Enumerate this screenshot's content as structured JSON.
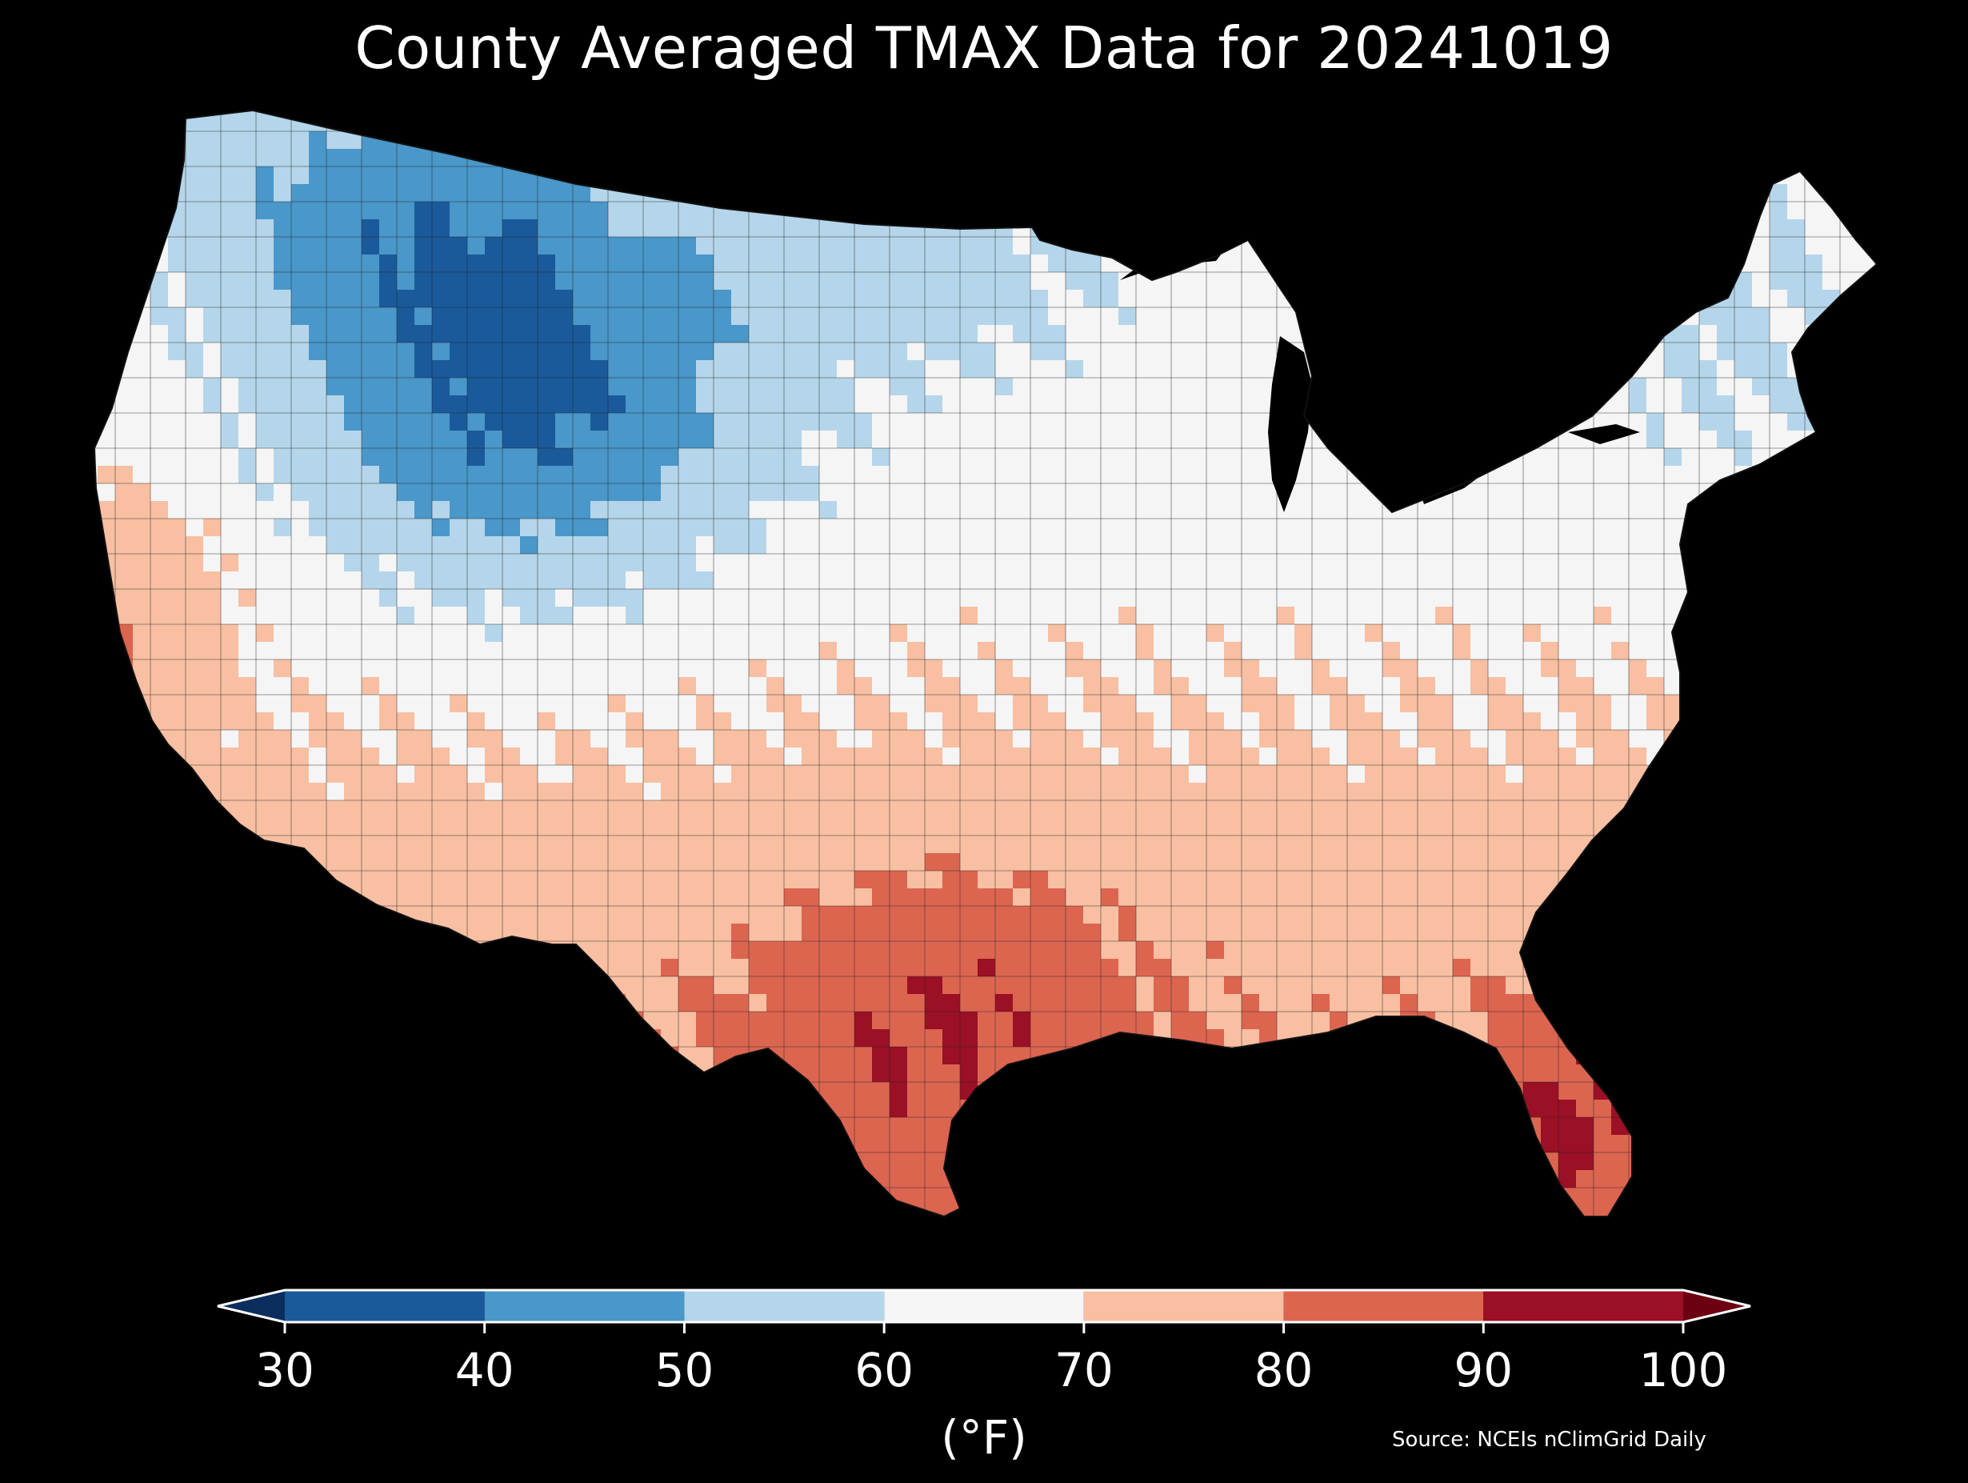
{
  "title": "County Averaged TMAX Data for 20241019",
  "colorbar": {
    "unit": "(°F)",
    "ticks": [
      "30",
      "40",
      "50",
      "60",
      "70",
      "80",
      "90",
      "100"
    ],
    "bins": [
      {
        "range": [
          30,
          40
        ],
        "color": "#1a5a9b"
      },
      {
        "range": [
          40,
          50
        ],
        "color": "#4a97c9"
      },
      {
        "range": [
          50,
          60
        ],
        "color": "#b5d6ea"
      },
      {
        "range": [
          60,
          70
        ],
        "color": "#f5f5f5"
      },
      {
        "range": [
          70,
          80
        ],
        "color": "#f8bfa2"
      },
      {
        "range": [
          80,
          90
        ],
        "color": "#dc6550"
      },
      {
        "range": [
          90,
          100
        ],
        "color": "#9b1025"
      }
    ],
    "under_color": "#0b2e5e",
    "over_color": "#6b0012"
  },
  "source": "Source: NCEIs nClimGrid Daily",
  "colors": {
    "background": "#000000",
    "text": "#ffffff",
    "county_lines": "#222222"
  }
}
